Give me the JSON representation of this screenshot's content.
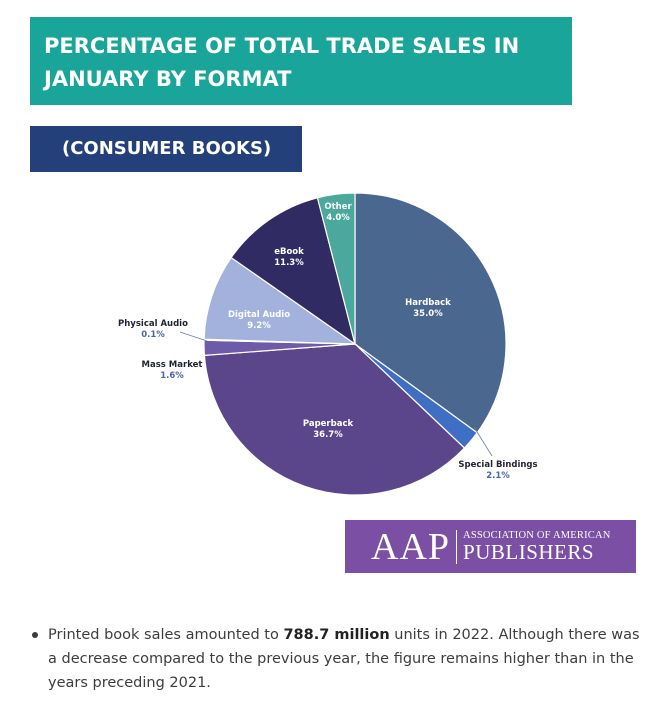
{
  "header": {
    "title_line1": "PERCENTAGE OF TOTAL TRADE SALES IN",
    "title_line2": "JANUARY  BY FORMAT",
    "subtitle": "(CONSUMER BOOKS)"
  },
  "logo": {
    "abbr": "AAP",
    "line1": "ASSOCIATION OF AMERICAN",
    "line2": "PUBLISHERS"
  },
  "bullet": {
    "before": "Printed book sales amounted to ",
    "bold": "788.7 million",
    "after": " units in 2022. Although there was a decrease compared to the previous year, the figure remains higher than in the years preceding 2021."
  },
  "chart_data": {
    "type": "pie",
    "title": "PERCENTAGE OF TOTAL TRADE SALES IN JANUARY  BY FORMAT",
    "subtitle": "(CONSUMER BOOKS)",
    "unit": "%",
    "slices": [
      {
        "label": "Hardback",
        "value": 35.0,
        "display": "35.0%",
        "color": "#4a6790"
      },
      {
        "label": "Special Bindings",
        "value": 2.1,
        "display": "2.1%",
        "color": "#3f6fc4"
      },
      {
        "label": "Paperback",
        "value": 36.7,
        "display": "36.7%",
        "color": "#5b468c"
      },
      {
        "label": "Mass Market",
        "value": 1.6,
        "display": "1.6%",
        "color": "#6d5aa8"
      },
      {
        "label": "Physical Audio",
        "value": 0.1,
        "display": "0.1%",
        "color": "#2e3f6a"
      },
      {
        "label": "Digital Audio",
        "value": 9.2,
        "display": "9.2%",
        "color": "#a3b2dc"
      },
      {
        "label": "eBook",
        "value": 11.3,
        "display": "11.3%",
        "color": "#312b63"
      },
      {
        "label": "Other",
        "value": 4.0,
        "display": "4.0%",
        "color": "#4aa89c"
      }
    ]
  }
}
